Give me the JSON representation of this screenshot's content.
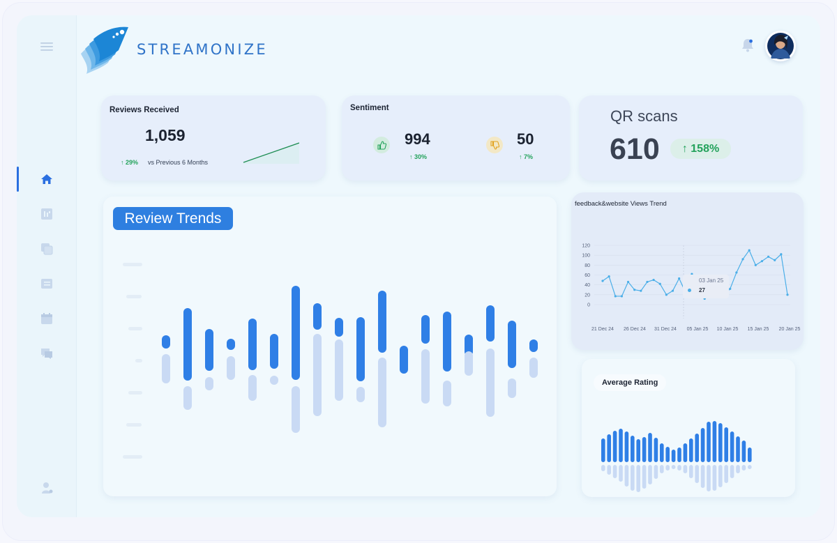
{
  "brand": {
    "name": "STREAMONIZE"
  },
  "sidebar": {
    "items": [
      {
        "icon": "menu-icon"
      },
      {
        "icon": "home-icon",
        "active": true
      },
      {
        "icon": "report-icon"
      },
      {
        "icon": "copy-icon"
      },
      {
        "icon": "document-icon"
      },
      {
        "icon": "calendar-icon"
      },
      {
        "icon": "chat-icon"
      },
      {
        "icon": "support-icon"
      }
    ]
  },
  "header": {
    "notification_icon": "bell-icon",
    "avatar_icon": "user-avatar-icon"
  },
  "reviews_card": {
    "title": "Reviews Received",
    "value": "1,059",
    "change": "29%",
    "change_label": "vs Previous 6 Months"
  },
  "sentiment_card": {
    "title": "Sentiment",
    "positive_value": "994",
    "positive_change": "30%",
    "negative_value": "50",
    "negative_change": "7%"
  },
  "qr_card": {
    "title": "QR scans",
    "value": "610",
    "change": "158%"
  },
  "review_trends": {
    "title": "Review Trends"
  },
  "views_trend": {
    "title": "feedback&website Views Trend",
    "tooltip_date": "03 Jan 25",
    "tooltip_value": "27"
  },
  "average_rating": {
    "title": "Average Rating"
  },
  "colors": {
    "accent": "#2e7fe0",
    "positive": "#23a25b",
    "line": "#4aaee8",
    "bar_light": "#c8daf6"
  },
  "chart_data": [
    {
      "type": "line",
      "title": "feedback&website Views Trend",
      "x_ticks": [
        "21 Dec 24",
        "26 Dec 24",
        "31 Dec 24",
        "05 Jan 25",
        "10 Jan 25",
        "15 Jan 25",
        "20 Jan 25"
      ],
      "y_ticks": [
        0,
        20,
        40,
        60,
        80,
        100,
        120
      ],
      "ylim": [
        0,
        120
      ],
      "series": [
        {
          "values": [
            48,
            57,
            17,
            17,
            46,
            30,
            28,
            46,
            50,
            42,
            20,
            28,
            53,
            25,
            62,
            37,
            12,
            20,
            25,
            19,
            32,
            65,
            92,
            110,
            80,
            88,
            97,
            90,
            102,
            20
          ]
        }
      ],
      "highlight": {
        "x": "03 Jan 25",
        "y": 27
      }
    }
  ]
}
